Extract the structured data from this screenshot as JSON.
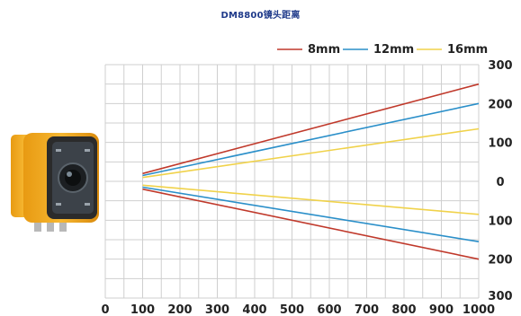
{
  "title": "DM8800镜头距离",
  "chart_data": {
    "type": "line",
    "title": "DM8800镜头距离",
    "xlabel": "",
    "ylabel": "",
    "xlim": [
      0,
      1000
    ],
    "ylim": [
      -300,
      300
    ],
    "grid": true,
    "legend_position": "top-right",
    "x_ticks": [
      "0",
      "100",
      "200",
      "300",
      "400",
      "500",
      "600",
      "700",
      "800",
      "900",
      "1000"
    ],
    "y_ticks": [
      "300",
      "200",
      "100",
      "0",
      "100",
      "200",
      "300"
    ],
    "y_tick_values": [
      300,
      200,
      100,
      0,
      -100,
      -200,
      -300
    ],
    "series": [
      {
        "name": "8mm",
        "color": "#c0392b",
        "x": [
          100,
          1000
        ],
        "upper": [
          20,
          250
        ],
        "lower": [
          -20,
          -200
        ]
      },
      {
        "name": "12mm",
        "color": "#2a8fc9",
        "x": [
          100,
          1000
        ],
        "upper": [
          15,
          200
        ],
        "lower": [
          -15,
          -155
        ]
      },
      {
        "name": "16mm",
        "color": "#f0d24a",
        "x": [
          100,
          1000
        ],
        "upper": [
          10,
          135
        ],
        "lower": [
          -10,
          -85
        ]
      }
    ]
  }
}
